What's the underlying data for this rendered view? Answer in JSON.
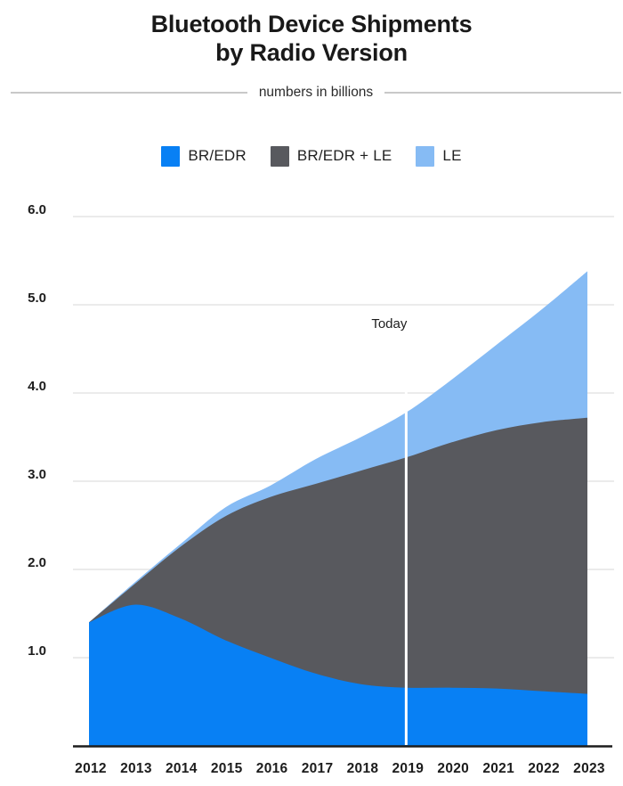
{
  "header": {
    "title": "Bluetooth Device Shipments\nby Radio Version",
    "subtitle": "numbers in billions"
  },
  "legend": {
    "position": "top",
    "items": [
      {
        "label": "BR/EDR",
        "color": "#0880f4"
      },
      {
        "label": "BR/EDR + LE",
        "color": "#58595e"
      },
      {
        "label": "LE",
        "color": "#86bbf4"
      }
    ]
  },
  "chart_data": {
    "type": "area",
    "stacked": true,
    "title": "Bluetooth Device Shipments by Radio Version",
    "subtitle": "numbers in billions",
    "x": [
      2012,
      2013,
      2014,
      2015,
      2016,
      2017,
      2018,
      2019,
      2020,
      2021,
      2022,
      2023
    ],
    "x_tick_labels": [
      "2012",
      "2013",
      "2014",
      "2015",
      "2016",
      "2017",
      "2018",
      "2019",
      "2020",
      "2021",
      "2022",
      "2023"
    ],
    "series": [
      {
        "name": "BR/EDR",
        "color": "#0880f4",
        "values": [
          1.4,
          1.6,
          1.45,
          1.2,
          1.0,
          0.82,
          0.7,
          0.66,
          0.66,
          0.65,
          0.62,
          0.59
        ]
      },
      {
        "name": "BR/EDR + LE",
        "color": "#58595e",
        "values": [
          0.0,
          0.23,
          0.8,
          1.4,
          1.82,
          2.15,
          2.42,
          2.61,
          2.78,
          2.93,
          3.05,
          3.13
        ]
      },
      {
        "name": "LE",
        "color": "#86bbf4",
        "values": [
          0.0,
          0.02,
          0.03,
          0.1,
          0.13,
          0.28,
          0.38,
          0.51,
          0.71,
          0.97,
          1.28,
          1.66
        ]
      }
    ],
    "stacked_totals": [
      1.4,
      1.85,
      2.28,
      2.7,
      2.95,
      3.25,
      3.5,
      3.78,
      4.15,
      4.55,
      4.95,
      5.38
    ],
    "y_axis": {
      "min": 0,
      "max": 6,
      "tick_step": 1.0,
      "tick_labels": [
        "1.0",
        "2.0",
        "3.0",
        "4.0",
        "5.0",
        "6.0"
      ]
    },
    "grid": "horizontal",
    "legend_position": "top",
    "annotations": [
      {
        "type": "vline",
        "x": 2019,
        "label": "Today",
        "line_color": "#ffffff"
      }
    ]
  },
  "colors": {
    "background": "#ffffff",
    "title_text": "#191919",
    "tick_text": "#1c1c1c",
    "gridline": "#ebebeb",
    "axis_line": "#1d1d1d",
    "annotation_line": "#ffffff"
  }
}
